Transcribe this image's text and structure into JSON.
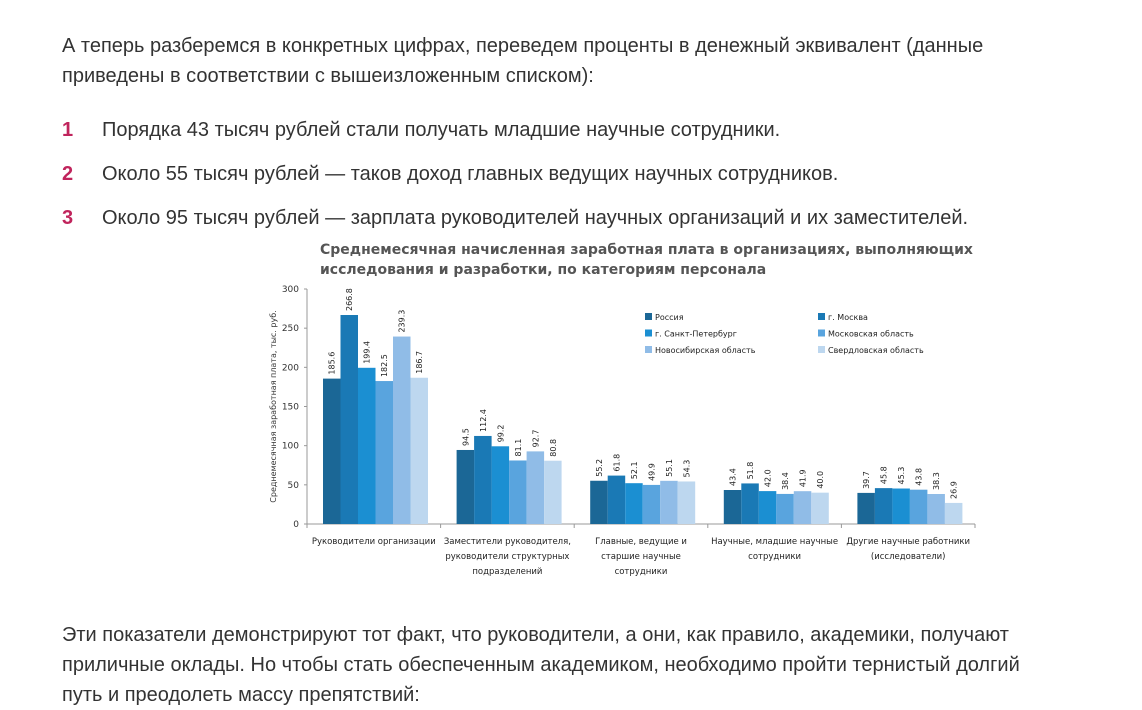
{
  "intro": [
    "А теперь разберемся в конкретных цифрах, переведем проценты в денежный эквивалент (данные",
    "приведены в соответствии с вышеизложенным списком):"
  ],
  "list": [
    {
      "num": "1",
      "text": "Порядка 43 тысяч рублей стали получать младшие научные сотрудники."
    },
    {
      "num": "2",
      "text": "Около 55 тысяч рублей — таков доход главных ведущих научных сотрудников."
    },
    {
      "num": "3",
      "text": "Около 95 тысяч рублей — зарплата руководителей научных организаций и их заместителей."
    }
  ],
  "outro": [
    "Эти показатели демонстрируют тот факт, что руководители, а они, как правило, академики, получают",
    "приличные оклады. Но чтобы стать обеспеченным академиком, необходимо пройти тернистый долгий",
    "путь и преодолеть массу препятствий:"
  ],
  "colors": {
    "list_number": "#c0245c",
    "text": "#333333"
  },
  "chart_data": {
    "type": "bar",
    "title": [
      "Среднемесячная начисленная заработная плата в организациях, выполняющих",
      "исследования и разработки, по категориям персонала"
    ],
    "ylabel": "Среднемесячная заработная плата, тыс. руб.",
    "ylim": [
      0,
      300
    ],
    "yticks": [
      0,
      50,
      100,
      150,
      200,
      250,
      300
    ],
    "legend_position": "top-right",
    "categories": [
      [
        "Руководители организации"
      ],
      [
        "Заместители руководителя,",
        "руководители структурных",
        "подразделений"
      ],
      [
        "Главные, ведущие и",
        "старшие научные",
        "сотрудники"
      ],
      [
        "Научные, младшие научные",
        "сотрудники"
      ],
      [
        "Другие научные работники",
        "(исследователи)"
      ]
    ],
    "series": [
      {
        "name": "Россия",
        "color": "#1b6796",
        "values": [
          185.6,
          94.5,
          55.2,
          43.4,
          39.7
        ]
      },
      {
        "name": "г. Москва",
        "color": "#1a79b5",
        "values": [
          266.8,
          112.4,
          61.8,
          51.8,
          45.8
        ]
      },
      {
        "name": "г. Санкт-Петербург",
        "color": "#1b8fd2",
        "values": [
          199.4,
          99.2,
          52.1,
          42.0,
          45.3
        ]
      },
      {
        "name": "Московская область",
        "color": "#59a4de",
        "values": [
          182.5,
          81.1,
          49.9,
          38.4,
          43.8
        ]
      },
      {
        "name": "Новосибирская область",
        "color": "#90bce7",
        "values": [
          239.3,
          92.7,
          55.1,
          41.9,
          38.3
        ]
      },
      {
        "name": "Свердловская область",
        "color": "#bdd7ef",
        "values": [
          186.7,
          80.8,
          54.3,
          40.0,
          26.9
        ]
      }
    ]
  }
}
